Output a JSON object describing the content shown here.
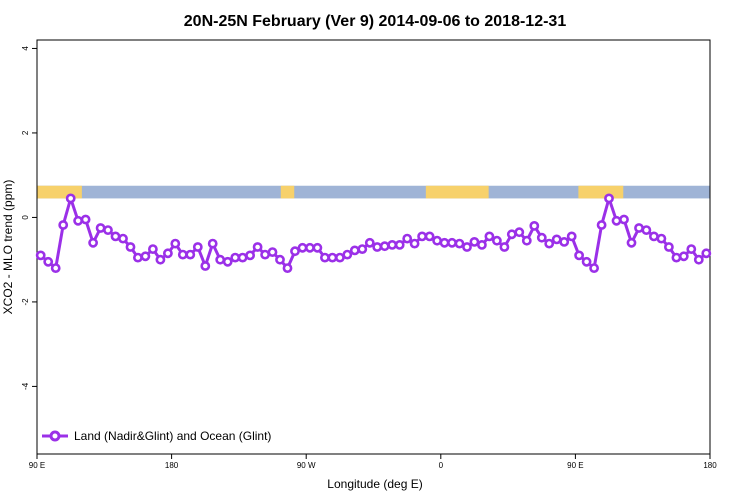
{
  "chart_data": {
    "type": "line",
    "title": "20N-25N February (Ver 9)   2014-09-06 to 2018-12-31",
    "xlabel": "Longitude (deg E)",
    "ylabel": "XCO2 - MLO trend (ppm)",
    "xlim": [
      90,
      540
    ],
    "ylim": [
      -5.6,
      4.2
    ],
    "x_ticks": [
      {
        "value": 90,
        "label": "90 E"
      },
      {
        "value": 180,
        "label": "180"
      },
      {
        "value": 270,
        "label": "90 W"
      },
      {
        "value": 360,
        "label": "0"
      },
      {
        "value": 450,
        "label": "90 E"
      },
      {
        "value": 540,
        "label": "180"
      }
    ],
    "y_ticks": [
      {
        "value": -4,
        "label": "-4"
      },
      {
        "value": -2,
        "label": "-2"
      },
      {
        "value": 0,
        "label": "0"
      },
      {
        "value": 2,
        "label": "2"
      },
      {
        "value": 4,
        "label": "4"
      }
    ],
    "legend": {
      "position": "bottom-left"
    },
    "map_band": {
      "y_range": [
        0.45,
        0.75
      ],
      "ocean_color": "#9fb4d6",
      "land_color": "#f7d16b"
    },
    "series": [
      {
        "name": "Land (Nadir&Glint) and Ocean (Glint)",
        "color": "#9b30e8",
        "x": [
          92.5,
          97.5,
          102.5,
          107.5,
          112.5,
          117.5,
          122.5,
          127.5,
          132.5,
          137.5,
          142.5,
          147.5,
          152.5,
          157.5,
          162.5,
          167.5,
          172.5,
          177.5,
          182.5,
          187.5,
          192.5,
          197.5,
          202.5,
          207.5,
          212.5,
          217.5,
          222.5,
          227.5,
          232.5,
          237.5,
          242.5,
          247.5,
          252.5,
          257.5,
          262.5,
          267.5,
          272.5,
          277.5,
          282.5,
          287.5,
          292.5,
          297.5,
          302.5,
          307.5,
          312.5,
          317.5,
          322.5,
          327.5,
          332.5,
          337.5,
          342.5,
          347.5,
          352.5,
          357.5,
          362.5,
          367.5,
          372.5,
          377.5,
          382.5,
          387.5,
          392.5,
          397.5,
          402.5,
          407.5,
          412.5,
          417.5,
          422.5,
          427.5,
          432.5,
          437.5,
          442.5,
          447.5,
          452.5,
          457.5,
          462.5,
          467.5,
          472.5,
          477.5,
          482.5,
          487.5,
          492.5,
          497.5,
          502.5,
          507.5,
          512.5,
          517.5,
          522.5,
          527.5,
          532.5,
          537.5
        ],
        "values": [
          -0.9,
          -1.05,
          -1.2,
          -0.18,
          0.45,
          -0.08,
          -0.05,
          -0.6,
          -0.25,
          -0.3,
          -0.45,
          -0.5,
          -0.7,
          -0.95,
          -0.92,
          -0.75,
          -1.0,
          -0.85,
          -0.62,
          -0.88,
          -0.88,
          -0.7,
          -1.15,
          -0.62,
          -1.0,
          -1.05,
          -0.95,
          -0.95,
          -0.9,
          -0.7,
          -0.88,
          -0.82,
          -1.0,
          -1.2,
          -0.8,
          -0.72,
          -0.72,
          -0.72,
          -0.95,
          -0.95,
          -0.95,
          -0.88,
          -0.78,
          -0.75,
          -0.6,
          -0.7,
          -0.68,
          -0.65,
          -0.65,
          -0.5,
          -0.62,
          -0.45,
          -0.45,
          -0.55,
          -0.6,
          -0.6,
          -0.62,
          -0.7,
          -0.58,
          -0.65,
          -0.45,
          -0.55,
          -0.7,
          -0.4,
          -0.35,
          -0.55,
          -0.2,
          -0.48,
          -0.62,
          -0.52,
          -0.58,
          -0.45,
          -0.9,
          -1.05,
          -1.2,
          -0.18,
          0.45,
          -0.08,
          -0.05,
          -0.6,
          -0.25,
          -0.3,
          -0.45,
          -0.5,
          -0.7,
          -0.95,
          -0.92,
          -0.75,
          -1.0,
          -0.85
        ]
      }
    ]
  }
}
